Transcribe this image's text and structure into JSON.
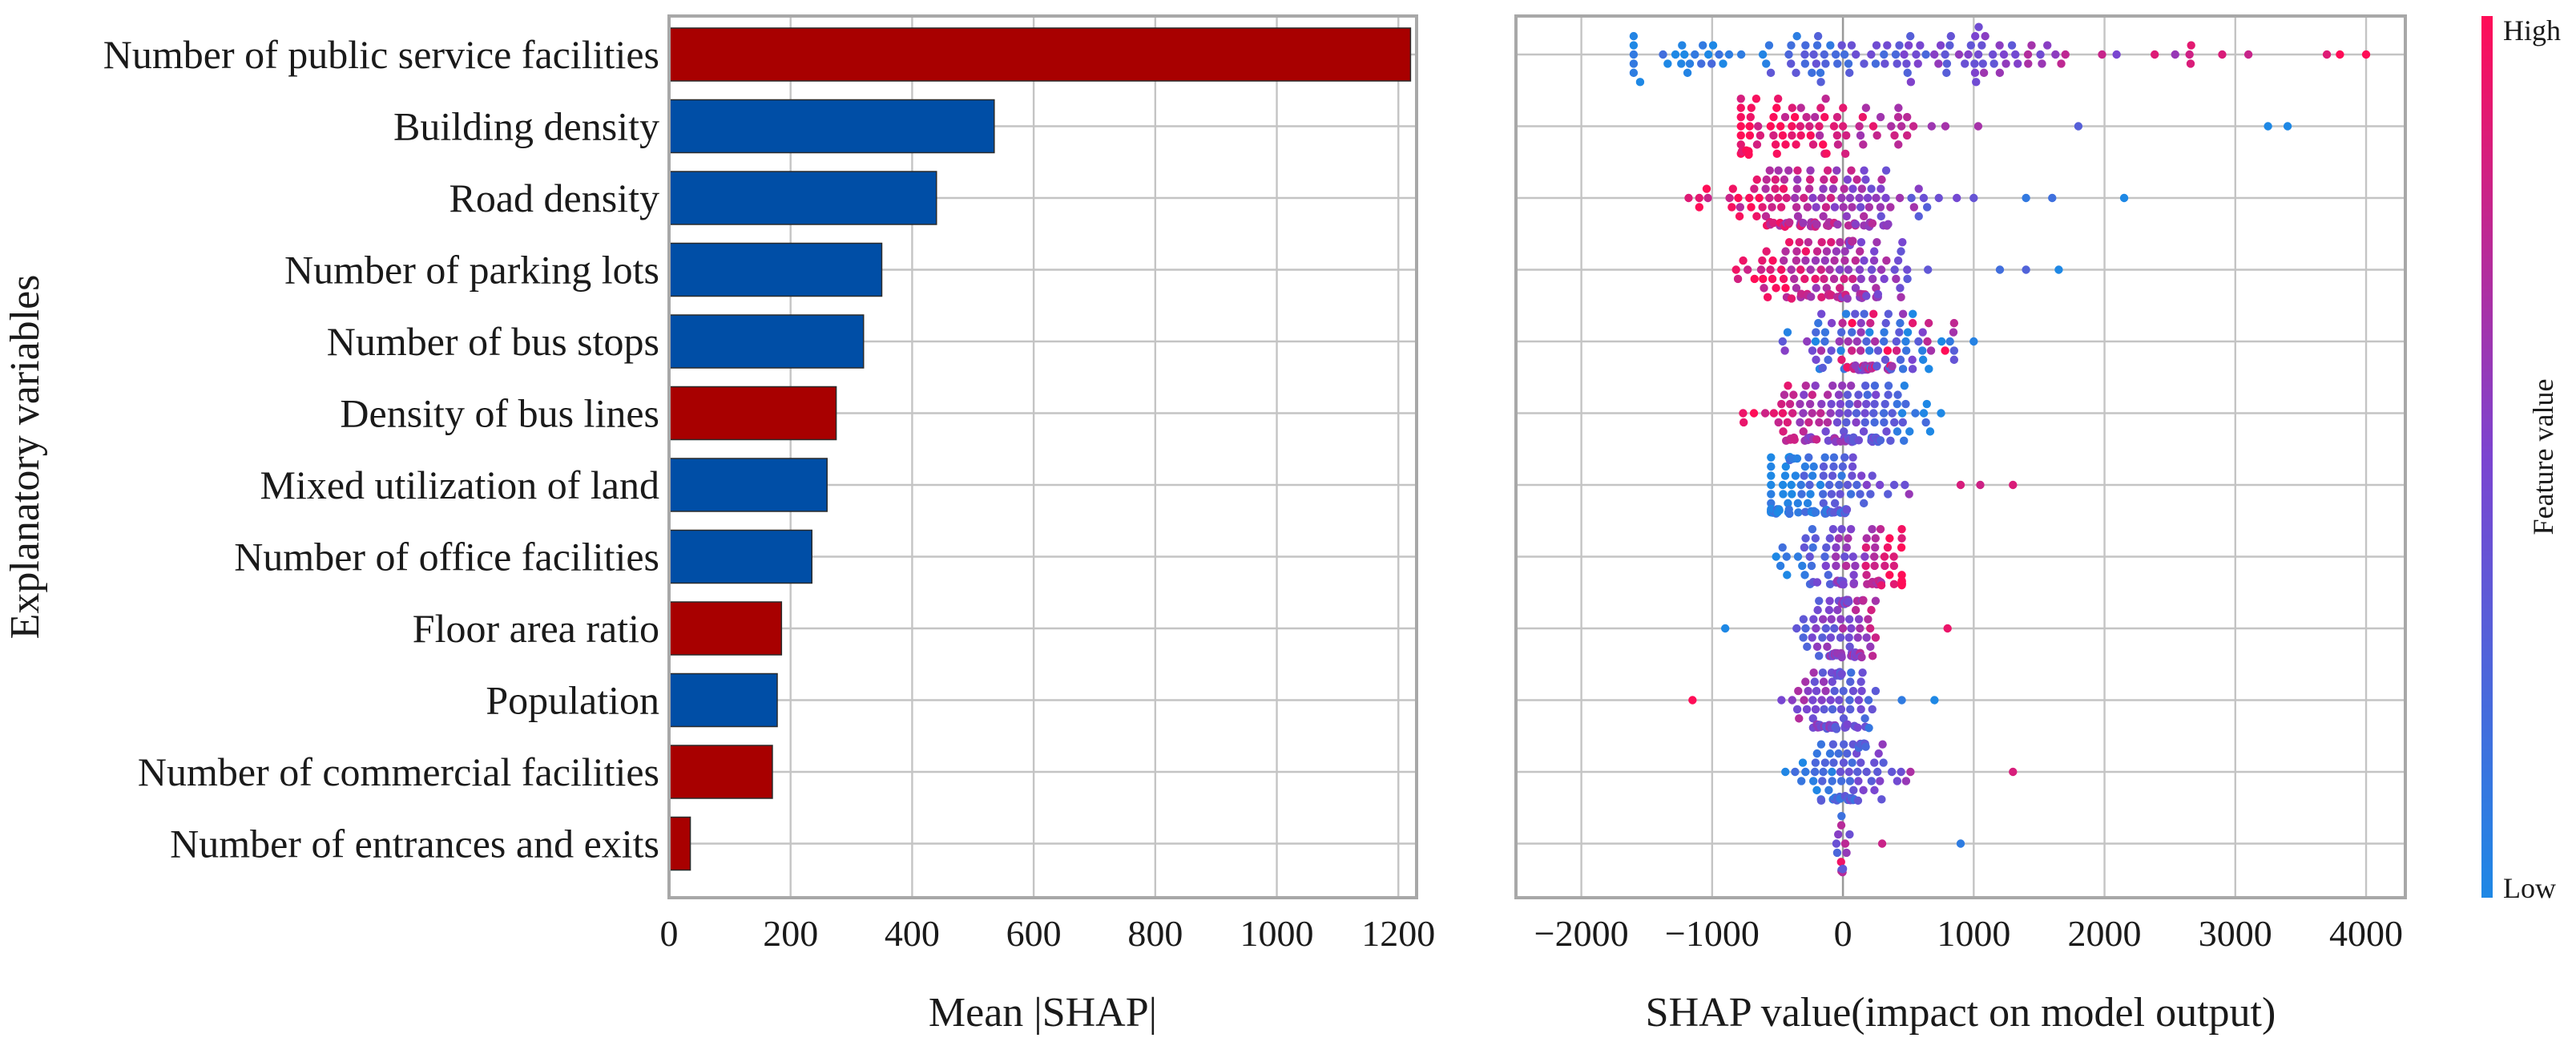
{
  "chart_data": [
    {
      "type": "bar",
      "orientation": "horizontal",
      "ylabel": "Explanatory variables",
      "xlabel": "Mean |SHAP|",
      "xlim": [
        0,
        1230
      ],
      "xticks": [
        0,
        200,
        400,
        600,
        800,
        1000,
        1200
      ],
      "grid": true,
      "colors": {
        "positive": "#a80000",
        "negative": "#004ea6"
      },
      "categories": [
        "Number of public service facilities",
        "Building density",
        "Road density",
        "Number of parking lots",
        "Number of bus stops",
        "Density of bus lines",
        "Mixed utilization of land",
        "Number of office facilities",
        "Floor area ratio",
        "Population",
        "Number of commercial facilities",
        "Number of entrances and exits"
      ],
      "values": [
        1220,
        535,
        440,
        350,
        320,
        275,
        260,
        235,
        185,
        178,
        170,
        35
      ],
      "bar_color": [
        "positive",
        "negative",
        "negative",
        "negative",
        "negative",
        "positive",
        "negative",
        "negative",
        "positive",
        "negative",
        "positive",
        "positive"
      ]
    },
    {
      "type": "scatter",
      "subtype": "beeswarm",
      "xlabel": "SHAP value(impact on model output)",
      "xlim": [
        -2500,
        4300
      ],
      "xticks": [
        -2000,
        -1000,
        0,
        1000,
        2000,
        3000,
        4000
      ],
      "xtick_labels": [
        "−2000",
        "−1000",
        "0",
        "1000",
        "2000",
        "3000",
        "4000"
      ],
      "grid": true,
      "colormap": [
        "#1e88e5",
        "#7b44d0",
        "#ff0d57"
      ],
      "colorbar": {
        "label": "Feature value",
        "high": "High",
        "low": "Low"
      },
      "note": "Each row follows the category order of the bar chart.",
      "rows": [
        {
          "min": -1600,
          "max": 4000,
          "center": 200,
          "count": 120,
          "trend": "up",
          "outliers": [
            2650,
            2900,
            3100,
            3700,
            3800,
            4000
          ]
        },
        {
          "min": -780,
          "max": 1400,
          "center": -200,
          "count": 80,
          "trend": "down",
          "outliers": [
            1800,
            3250,
            3400
          ]
        },
        {
          "min": -1180,
          "max": 1000,
          "center": -150,
          "count": 140,
          "trend": "down",
          "outliers": [
            1400,
            1600,
            2150
          ]
        },
        {
          "min": -1050,
          "max": 650,
          "center": -100,
          "count": 120,
          "trend": "down",
          "outliers": [
            1200,
            1400,
            1650
          ]
        },
        {
          "min": -720,
          "max": 850,
          "center": 150,
          "count": 110,
          "trend": "mixed",
          "outliers": [
            1000
          ]
        },
        {
          "min": -950,
          "max": 750,
          "center": 0,
          "count": 130,
          "trend": "down",
          "outliers": []
        },
        {
          "min": -550,
          "max": 700,
          "center": -200,
          "count": 110,
          "trend": "up",
          "outliers": [
            900,
            1050,
            1300
          ]
        },
        {
          "min": -1100,
          "max": 450,
          "center": 100,
          "count": 90,
          "trend": "up",
          "outliers": []
        },
        {
          "min": -500,
          "max": 250,
          "center": 0,
          "count": 90,
          "trend": "up",
          "outliers": [
            -900,
            800
          ]
        },
        {
          "min": -600,
          "max": 250,
          "center": -50,
          "count": 90,
          "trend": "down",
          "outliers": [
            -1150,
            450,
            700
          ]
        },
        {
          "min": -450,
          "max": 550,
          "center": 50,
          "count": 80,
          "trend": "up",
          "outliers": [
            1300
          ]
        },
        {
          "min": -50,
          "max": 100,
          "center": 0,
          "count": 14,
          "trend": "mixed",
          "outliers": [
            300,
            900
          ]
        }
      ]
    }
  ]
}
